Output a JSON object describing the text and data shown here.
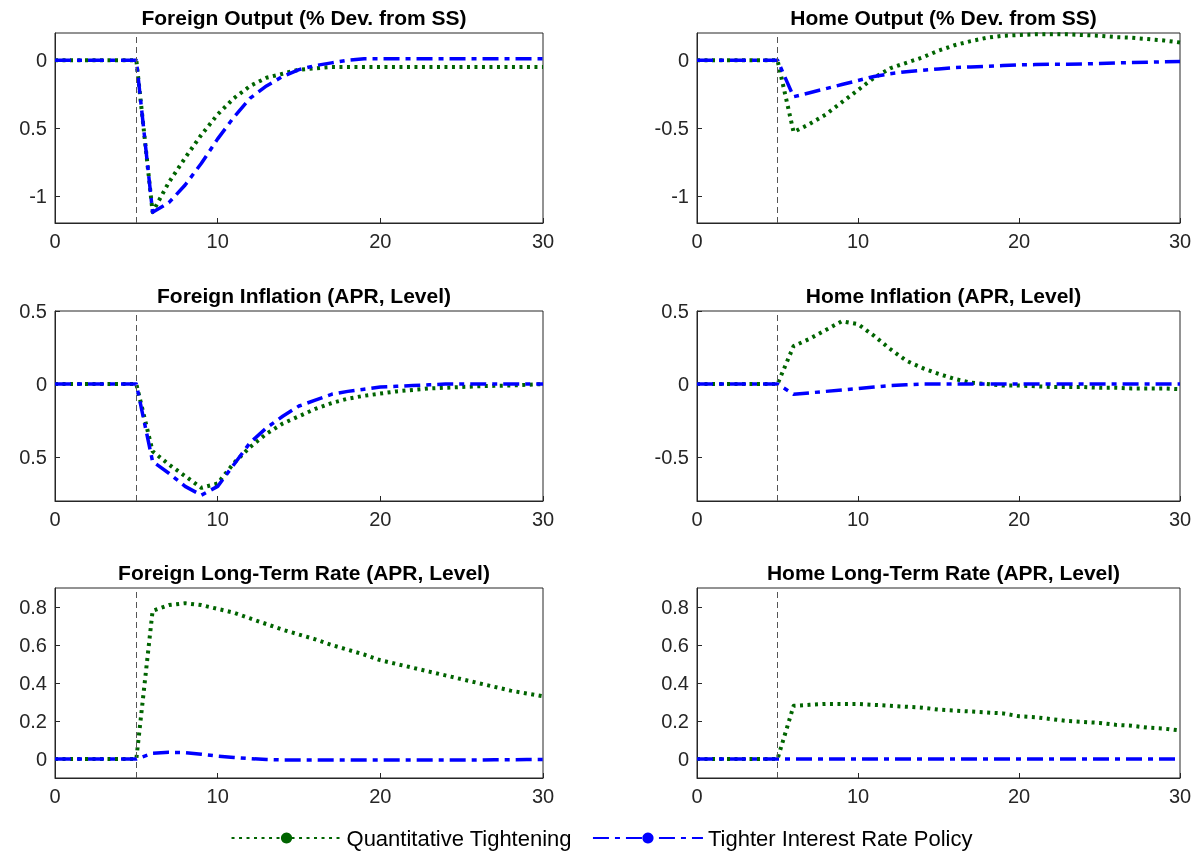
{
  "chart_data": [
    {
      "type": "line",
      "title": "Foreign Output (% Dev. from SS)",
      "x": [
        0,
        1,
        2,
        3,
        4,
        5,
        6,
        7,
        8,
        9,
        10,
        11,
        12,
        13,
        14,
        15,
        16,
        17,
        18,
        19,
        20,
        21,
        22,
        23,
        24,
        25,
        26,
        27,
        28,
        29,
        30
      ],
      "xlim": [
        0,
        30
      ],
      "xticks": [
        0,
        10,
        20,
        30
      ],
      "ylim": [
        -1.2,
        0.2
      ],
      "yticks": [
        -1,
        {
          "value": -0.5,
          "label": "0.5"
        },
        0
      ],
      "grid": false,
      "legend": false,
      "series": [
        {
          "color": "#006400",
          "line_style": "dotted",
          "values": [
            0,
            0,
            0,
            0,
            0,
            0,
            -1.12,
            -0.9,
            -0.72,
            -0.55,
            -0.4,
            -0.28,
            -0.19,
            -0.13,
            -0.1,
            -0.07,
            -0.06,
            -0.05,
            -0.05,
            -0.05,
            -0.05,
            -0.05,
            -0.05,
            -0.05,
            -0.05,
            -0.05,
            -0.05,
            -0.05,
            -0.05,
            -0.05,
            -0.05
          ]
        },
        {
          "color": "#0000ff",
          "line_style": "dashed",
          "values": [
            0,
            0,
            0,
            0,
            0,
            0,
            -1.12,
            -1.05,
            -0.92,
            -0.76,
            -0.58,
            -0.42,
            -0.28,
            -0.19,
            -0.12,
            -0.07,
            -0.04,
            -0.02,
            0,
            0.01,
            0.01,
            0.01,
            0.01,
            0.01,
            0.01,
            0.01,
            0.01,
            0.01,
            0.01,
            0.01,
            0.01
          ]
        }
      ],
      "ref_lines": [
        {
          "axis": "x",
          "value": 5,
          "label": null,
          "color": "#555555",
          "line_style": "dashed"
        }
      ]
    },
    {
      "type": "line",
      "title": "Home Output (% Dev. from SS)",
      "x": [
        0,
        1,
        2,
        3,
        4,
        5,
        6,
        7,
        8,
        9,
        10,
        11,
        12,
        13,
        14,
        15,
        16,
        17,
        18,
        19,
        20,
        21,
        22,
        23,
        24,
        25,
        26,
        27,
        28,
        29,
        30
      ],
      "xlim": [
        0,
        30
      ],
      "xticks": [
        0,
        10,
        20,
        30
      ],
      "ylim": [
        -1.2,
        0.2
      ],
      "yticks": [
        -1,
        -0.5,
        0
      ],
      "grid": false,
      "legend": false,
      "series": [
        {
          "color": "#006400",
          "line_style": "dotted",
          "values": [
            0,
            0,
            0,
            0,
            0,
            0,
            -0.53,
            -0.47,
            -0.4,
            -0.31,
            -0.22,
            -0.13,
            -0.06,
            -0.02,
            0.02,
            0.07,
            0.11,
            0.14,
            0.165,
            0.18,
            0.185,
            0.19,
            0.19,
            0.19,
            0.185,
            0.18,
            0.17,
            0.165,
            0.155,
            0.145,
            0.13
          ]
        },
        {
          "color": "#0000ff",
          "line_style": "dashed",
          "values": [
            0,
            0,
            0,
            0,
            0,
            0,
            -0.27,
            -0.24,
            -0.21,
            -0.18,
            -0.15,
            -0.12,
            -0.1,
            -0.085,
            -0.075,
            -0.065,
            -0.055,
            -0.05,
            -0.045,
            -0.04,
            -0.035,
            -0.033,
            -0.03,
            -0.03,
            -0.028,
            -0.025,
            -0.02,
            -0.018,
            -0.015,
            -0.012,
            -0.01
          ]
        }
      ],
      "ref_lines": [
        {
          "axis": "x",
          "value": 5,
          "label": null,
          "color": "#555555",
          "line_style": "dashed"
        }
      ]
    },
    {
      "type": "line",
      "title": "Foreign Inflation (APR, Level)",
      "x": [
        0,
        1,
        2,
        3,
        4,
        5,
        6,
        7,
        8,
        9,
        10,
        11,
        12,
        13,
        14,
        15,
        16,
        17,
        18,
        19,
        20,
        21,
        22,
        23,
        24,
        25,
        26,
        27,
        28,
        29,
        30
      ],
      "xlim": [
        0,
        30
      ],
      "xticks": [
        0,
        10,
        20,
        30
      ],
      "ylim": [
        -0.8,
        0.5
      ],
      "yticks": [
        {
          "value": -0.5,
          "label": "0.5"
        },
        0,
        0.5
      ],
      "grid": false,
      "legend": false,
      "series": [
        {
          "color": "#006400",
          "line_style": "dotted",
          "values": [
            0,
            0,
            0,
            0,
            0,
            0,
            -0.46,
            -0.55,
            -0.63,
            -0.71,
            -0.68,
            -0.54,
            -0.43,
            -0.34,
            -0.27,
            -0.22,
            -0.17,
            -0.13,
            -0.1,
            -0.08,
            -0.065,
            -0.05,
            -0.04,
            -0.03,
            -0.025,
            -0.02,
            -0.015,
            -0.012,
            -0.01,
            -0.005,
            0
          ]
        },
        {
          "color": "#0000ff",
          "line_style": "dashed",
          "values": [
            0,
            0,
            0,
            0,
            0,
            0,
            -0.53,
            -0.61,
            -0.7,
            -0.76,
            -0.7,
            -0.55,
            -0.4,
            -0.3,
            -0.22,
            -0.15,
            -0.11,
            -0.07,
            -0.05,
            -0.035,
            -0.02,
            -0.015,
            -0.01,
            -0.005,
            0,
            0,
            0,
            0,
            0,
            0,
            0
          ]
        }
      ],
      "ref_lines": [
        {
          "axis": "x",
          "value": 5,
          "label": null,
          "color": "#555555",
          "line_style": "dashed"
        }
      ]
    },
    {
      "type": "line",
      "title": "Home Inflation (APR, Level)",
      "x": [
        0,
        1,
        2,
        3,
        4,
        5,
        6,
        7,
        8,
        9,
        10,
        11,
        12,
        13,
        14,
        15,
        16,
        17,
        18,
        19,
        20,
        21,
        22,
        23,
        24,
        25,
        26,
        27,
        28,
        29,
        30
      ],
      "xlim": [
        0,
        30
      ],
      "xticks": [
        0,
        10,
        20,
        30
      ],
      "ylim": [
        -0.8,
        0.5
      ],
      "yticks": [
        -0.5,
        0,
        0.5
      ],
      "grid": false,
      "legend": false,
      "series": [
        {
          "color": "#006400",
          "line_style": "dotted",
          "values": [
            0,
            0,
            0,
            0,
            0,
            0,
            0.26,
            0.31,
            0.37,
            0.43,
            0.41,
            0.33,
            0.24,
            0.16,
            0.11,
            0.07,
            0.035,
            0.01,
            0,
            -0.01,
            -0.01,
            -0.015,
            -0.02,
            -0.02,
            -0.02,
            -0.025,
            -0.025,
            -0.03,
            -0.03,
            -0.03,
            -0.035
          ]
        },
        {
          "color": "#0000ff",
          "line_style": "dashed",
          "values": [
            0,
            0,
            0,
            0,
            0,
            0,
            -0.07,
            -0.06,
            -0.05,
            -0.04,
            -0.03,
            -0.02,
            -0.01,
            -0.005,
            0,
            0,
            0,
            0,
            0,
            0,
            0,
            0,
            0,
            0,
            0,
            0,
            0,
            0,
            0,
            0,
            0
          ]
        }
      ],
      "ref_lines": [
        {
          "axis": "x",
          "value": 5,
          "label": null,
          "color": "#555555",
          "line_style": "dashed"
        }
      ]
    },
    {
      "type": "line",
      "title": "Foreign Long-Term Rate (APR, Level)",
      "x": [
        0,
        1,
        2,
        3,
        4,
        5,
        6,
        7,
        8,
        9,
        10,
        11,
        12,
        13,
        14,
        15,
        16,
        17,
        18,
        19,
        20,
        21,
        22,
        23,
        24,
        25,
        26,
        27,
        28,
        29,
        30
      ],
      "xlim": [
        0,
        30
      ],
      "xticks": [
        0,
        10,
        20,
        30
      ],
      "ylim": [
        -0.1,
        0.9
      ],
      "yticks": [
        0,
        0.2,
        0.4,
        0.6,
        0.8
      ],
      "grid": false,
      "legend": false,
      "series": [
        {
          "color": "#006400",
          "line_style": "dotted",
          "values": [
            0,
            0,
            0,
            0,
            0,
            0,
            0.78,
            0.81,
            0.82,
            0.81,
            0.79,
            0.77,
            0.74,
            0.71,
            0.68,
            0.655,
            0.63,
            0.6,
            0.575,
            0.55,
            0.52,
            0.5,
            0.48,
            0.46,
            0.44,
            0.42,
            0.4,
            0.38,
            0.36,
            0.345,
            0.33
          ]
        },
        {
          "color": "#0000ff",
          "line_style": "dashed",
          "values": [
            0,
            0,
            0,
            0,
            0,
            0,
            0.03,
            0.035,
            0.033,
            0.025,
            0.015,
            0.008,
            0.002,
            -0.003,
            -0.005,
            -0.005,
            -0.005,
            -0.005,
            -0.005,
            -0.005,
            -0.005,
            -0.005,
            -0.005,
            -0.005,
            -0.005,
            -0.005,
            -0.005,
            -0.004,
            -0.004,
            -0.003,
            -0.003
          ]
        }
      ],
      "ref_lines": [
        {
          "axis": "x",
          "value": 5,
          "label": null,
          "color": "#555555",
          "line_style": "dashed"
        }
      ]
    },
    {
      "type": "line",
      "title": "Home Long-Term Rate (APR, Level)",
      "x": [
        0,
        1,
        2,
        3,
        4,
        5,
        6,
        7,
        8,
        9,
        10,
        11,
        12,
        13,
        14,
        15,
        16,
        17,
        18,
        19,
        20,
        21,
        22,
        23,
        24,
        25,
        26,
        27,
        28,
        29,
        30
      ],
      "xlim": [
        0,
        30
      ],
      "xticks": [
        0,
        10,
        20,
        30
      ],
      "ylim": [
        -0.1,
        0.9
      ],
      "yticks": [
        0,
        0.2,
        0.4,
        0.6,
        0.8
      ],
      "grid": false,
      "legend": "bottom",
      "series": [
        {
          "name": "Quantitative Tightening",
          "color": "#006400",
          "line_style": "dotted",
          "values": [
            0,
            0,
            0,
            0,
            0,
            0,
            0.28,
            0.285,
            0.29,
            0.29,
            0.29,
            0.285,
            0.28,
            0.275,
            0.27,
            0.26,
            0.255,
            0.25,
            0.245,
            0.24,
            0.225,
            0.22,
            0.21,
            0.2,
            0.195,
            0.19,
            0.18,
            0.175,
            0.165,
            0.16,
            0.15
          ]
        },
        {
          "name": "Tighter Interest Rate Policy",
          "color": "#0000ff",
          "line_style": "dashed",
          "values": [
            0,
            0,
            0,
            0,
            0,
            0,
            0,
            0,
            0,
            0,
            0,
            0,
            0,
            0,
            0,
            0,
            0,
            0,
            0,
            0,
            0,
            0,
            0,
            0,
            0,
            0,
            0,
            0,
            0,
            0,
            0
          ]
        }
      ],
      "ref_lines": [
        {
          "axis": "x",
          "value": 5,
          "label": null,
          "color": "#555555",
          "line_style": "dashed"
        }
      ]
    }
  ]
}
